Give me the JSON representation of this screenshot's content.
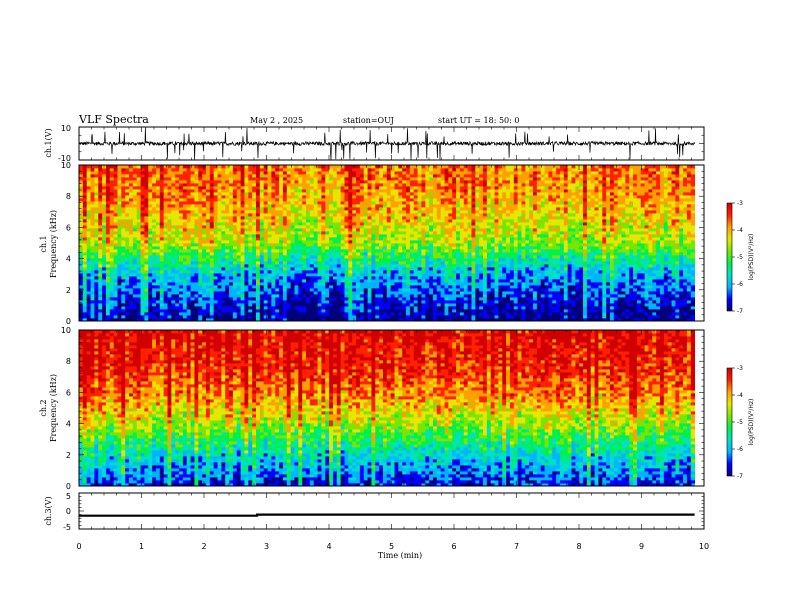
{
  "header": {
    "title": "VLF Spectra",
    "date": "May 2 , 2025",
    "station": "station=OUJ",
    "start": "start UT = 18: 50: 0"
  },
  "colors": {
    "spectrum": [
      "#00007a",
      "#0000ff",
      "#00b4ff",
      "#00e0c8",
      "#00f050",
      "#7ae600",
      "#e6e600",
      "#ffa000",
      "#ff2000",
      "#d00000"
    ],
    "trace": "#000000"
  },
  "chart_data": [
    {
      "type": "line",
      "name": "ch1-waveform",
      "ylabel": "ch.1(V)",
      "ylim": [
        -10,
        10
      ],
      "yticks": [
        "10",
        "-10"
      ],
      "xlim": [
        0,
        10
      ],
      "approx_value": 0,
      "spike_amplitude": 10
    },
    {
      "type": "heatmap",
      "name": "ch1-spectrogram",
      "ylabel": "ch.1\nFrequency (kHz)",
      "ylabel_lines": [
        "ch.1",
        "Frequency (kHz)"
      ],
      "ylim": [
        0,
        10
      ],
      "yticks": [
        "0",
        "2",
        "4",
        "6",
        "8",
        "10"
      ],
      "xlim": [
        0,
        9.85
      ],
      "colorbar": {
        "label": "log(PSD)(V²/Hz)",
        "range": [
          -7,
          -3
        ],
        "ticks": [
          "-3",
          "-4",
          "-5",
          "-6",
          "-7"
        ]
      },
      "approx_profile": [
        {
          "freq_khz": 0,
          "log_psd": -6.8
        },
        {
          "freq_khz": 1,
          "log_psd": -6.5
        },
        {
          "freq_khz": 2,
          "log_psd": -6.2
        },
        {
          "freq_khz": 3,
          "log_psd": -5.9
        },
        {
          "freq_khz": 4,
          "log_psd": -5.3
        },
        {
          "freq_khz": 5,
          "log_psd": -4.7
        },
        {
          "freq_khz": 6,
          "log_psd": -4.4
        },
        {
          "freq_khz": 8,
          "log_psd": -4.0
        },
        {
          "freq_khz": 10,
          "log_psd": -3.8
        }
      ]
    },
    {
      "type": "heatmap",
      "name": "ch2-spectrogram",
      "ylabel": "ch.2\nFrequency (kHz)",
      "ylabel_lines": [
        "ch.2",
        "Frequency (kHz)"
      ],
      "ylim": [
        0,
        10
      ],
      "yticks": [
        "0",
        "2",
        "4",
        "6",
        "8",
        "10"
      ],
      "xlim": [
        0,
        9.85
      ],
      "colorbar": {
        "label": "log(PSD)(V²/Hz)",
        "range": [
          -7,
          -3
        ],
        "ticks": [
          "-3",
          "-4",
          "-5",
          "-6",
          "-7"
        ]
      },
      "approx_profile": [
        {
          "freq_khz": 0,
          "log_psd": -6.5
        },
        {
          "freq_khz": 1,
          "log_psd": -6.1
        },
        {
          "freq_khz": 2,
          "log_psd": -5.7
        },
        {
          "freq_khz": 3,
          "log_psd": -5.2
        },
        {
          "freq_khz": 4,
          "log_psd": -4.7
        },
        {
          "freq_khz": 5,
          "log_psd": -4.3
        },
        {
          "freq_khz": 6,
          "log_psd": -3.9
        },
        {
          "freq_khz": 8,
          "log_psd": -3.5
        },
        {
          "freq_khz": 10,
          "log_psd": -3.3
        }
      ]
    },
    {
      "type": "line",
      "name": "ch3-waveform",
      "ylabel": "ch.3(V)",
      "ylim": [
        -5,
        5
      ],
      "yticks": [
        "5",
        "0",
        "-5"
      ],
      "xlim": [
        0,
        10
      ],
      "x": [
        0,
        2.85,
        2.85,
        9.85
      ],
      "y": [
        -1.3,
        -1.3,
        -1.0,
        -1.0
      ]
    }
  ],
  "xaxis": {
    "label": "Time (min)",
    "range": [
      0,
      10
    ],
    "ticks": [
      "0",
      "1",
      "2",
      "3",
      "4",
      "5",
      "6",
      "7",
      "8",
      "9",
      "10"
    ]
  }
}
